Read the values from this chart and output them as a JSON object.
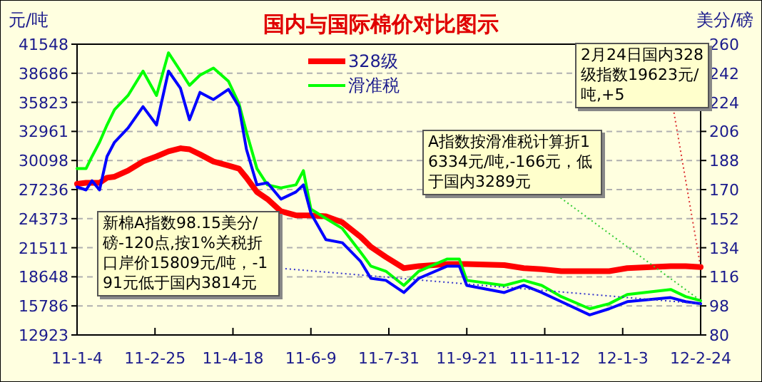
{
  "chart_data": {
    "type": "line",
    "title": "国内与国际棉价对比图示",
    "ylabel": "元/吨",
    "y2label": "美分/磅",
    "x": [
      "2011-01-04",
      "2011-01-10",
      "2011-01-14",
      "2011-01-19",
      "2011-01-24",
      "2011-01-29",
      "2011-02-07",
      "2011-02-17",
      "2011-02-26",
      "2011-03-06",
      "2011-03-14",
      "2011-03-20",
      "2011-03-27",
      "2011-04-05",
      "2011-04-15",
      "2011-04-22",
      "2011-04-27",
      "2011-05-04",
      "2011-05-11",
      "2011-05-20",
      "2011-05-30",
      "2011-06-04",
      "2011-06-09",
      "2011-06-19",
      "2011-06-30",
      "2011-07-12",
      "2011-07-19",
      "2011-07-29",
      "2011-08-10",
      "2011-08-20",
      "2011-09-08",
      "2011-09-16",
      "2011-09-21",
      "2011-10-16",
      "2011-10-29",
      "2011-11-10",
      "2011-11-23",
      "2011-12-12",
      "2011-12-25",
      "2012-01-06",
      "2012-02-04",
      "2012-02-14",
      "2012-02-24"
    ],
    "series": [
      {
        "name": "328级",
        "color": "#ff0000",
        "values": [
          27800,
          27900,
          27900,
          27900,
          28400,
          28500,
          29100,
          30000,
          30500,
          31000,
          31300,
          31200,
          30700,
          30000,
          29600,
          29300,
          28400,
          27000,
          26300,
          25100,
          24700,
          24700,
          24700,
          24600,
          24000,
          22600,
          21600,
          20600,
          19500,
          19700,
          19900,
          19900,
          19900,
          19800,
          19500,
          19400,
          19200,
          19200,
          19200,
          19500,
          19700,
          19700,
          19600
        ]
      },
      {
        "name": "滑准税",
        "color": "#00ff00",
        "values": [
          29300,
          29300,
          30500,
          31900,
          33600,
          35100,
          36500,
          38900,
          36500,
          40700,
          38900,
          37500,
          38500,
          39200,
          37900,
          35700,
          32900,
          29300,
          27700,
          27400,
          27700,
          29100,
          25300,
          24400,
          23400,
          21100,
          19700,
          19200,
          17800,
          19200,
          20400,
          20400,
          18300,
          17800,
          18300,
          17800,
          16700,
          15500,
          16000,
          16900,
          17400,
          16700,
          16300
        ]
      },
      {
        "color": "#0000ff",
        "values": [
          27500,
          27200,
          28100,
          27200,
          30500,
          31900,
          33300,
          35400,
          33600,
          38900,
          37200,
          34100,
          36800,
          36100,
          37100,
          35400,
          31200,
          27700,
          27900,
          26300,
          27000,
          27700,
          24900,
          22300,
          22000,
          20200,
          18500,
          18300,
          17100,
          18500,
          19700,
          19700,
          17800,
          17100,
          17800,
          17100,
          16200,
          14900,
          15500,
          16200,
          16600,
          16200,
          16000
        ]
      }
    ],
    "xlim": [
      "2011-01-04",
      "2012-02-24"
    ],
    "xticks": [
      {
        "value": "2011-01-04",
        "label": "11-1-4"
      },
      {
        "value": "2011-02-25",
        "label": "11-2-25"
      },
      {
        "value": "2011-04-18",
        "label": "11-4-18"
      },
      {
        "value": "2011-06-09",
        "label": "11-6-9"
      },
      {
        "value": "2011-07-31",
        "label": "11-7-31"
      },
      {
        "value": "2011-09-21",
        "label": "11-9-21"
      },
      {
        "value": "2011-11-12",
        "label": "11-11-12"
      },
      {
        "value": "2012-01-03",
        "label": "12-1-3"
      },
      {
        "value": "2012-02-24",
        "label": "12-2-24"
      }
    ],
    "ylim": [
      12923,
      41548
    ],
    "yticks": [
      12923,
      15786,
      18648,
      21511,
      24373,
      27236,
      30098,
      32961,
      35823,
      38686,
      41548
    ],
    "y2lim": [
      80,
      260
    ],
    "y2ticks": [
      80,
      98,
      116,
      134,
      152,
      170,
      188,
      206,
      224,
      242,
      260
    ],
    "grid": "y",
    "legend": "top",
    "annotations": [
      {
        "text": "新棉A指数98.15美分/磅-120点,按1%关税折口岸价15809元/吨，-191元低于国内3814元",
        "x": "2012-02-24",
        "y": 16000
      },
      {
        "text": "A指数按滑准税计算折16334元/吨,-166元，低于国内3289元",
        "x": "2012-02-24",
        "y": 16300
      },
      {
        "text": "2月24日国内328级指数19623元/吨,+5",
        "x": "2012-02-24",
        "y": 19600
      }
    ]
  }
}
